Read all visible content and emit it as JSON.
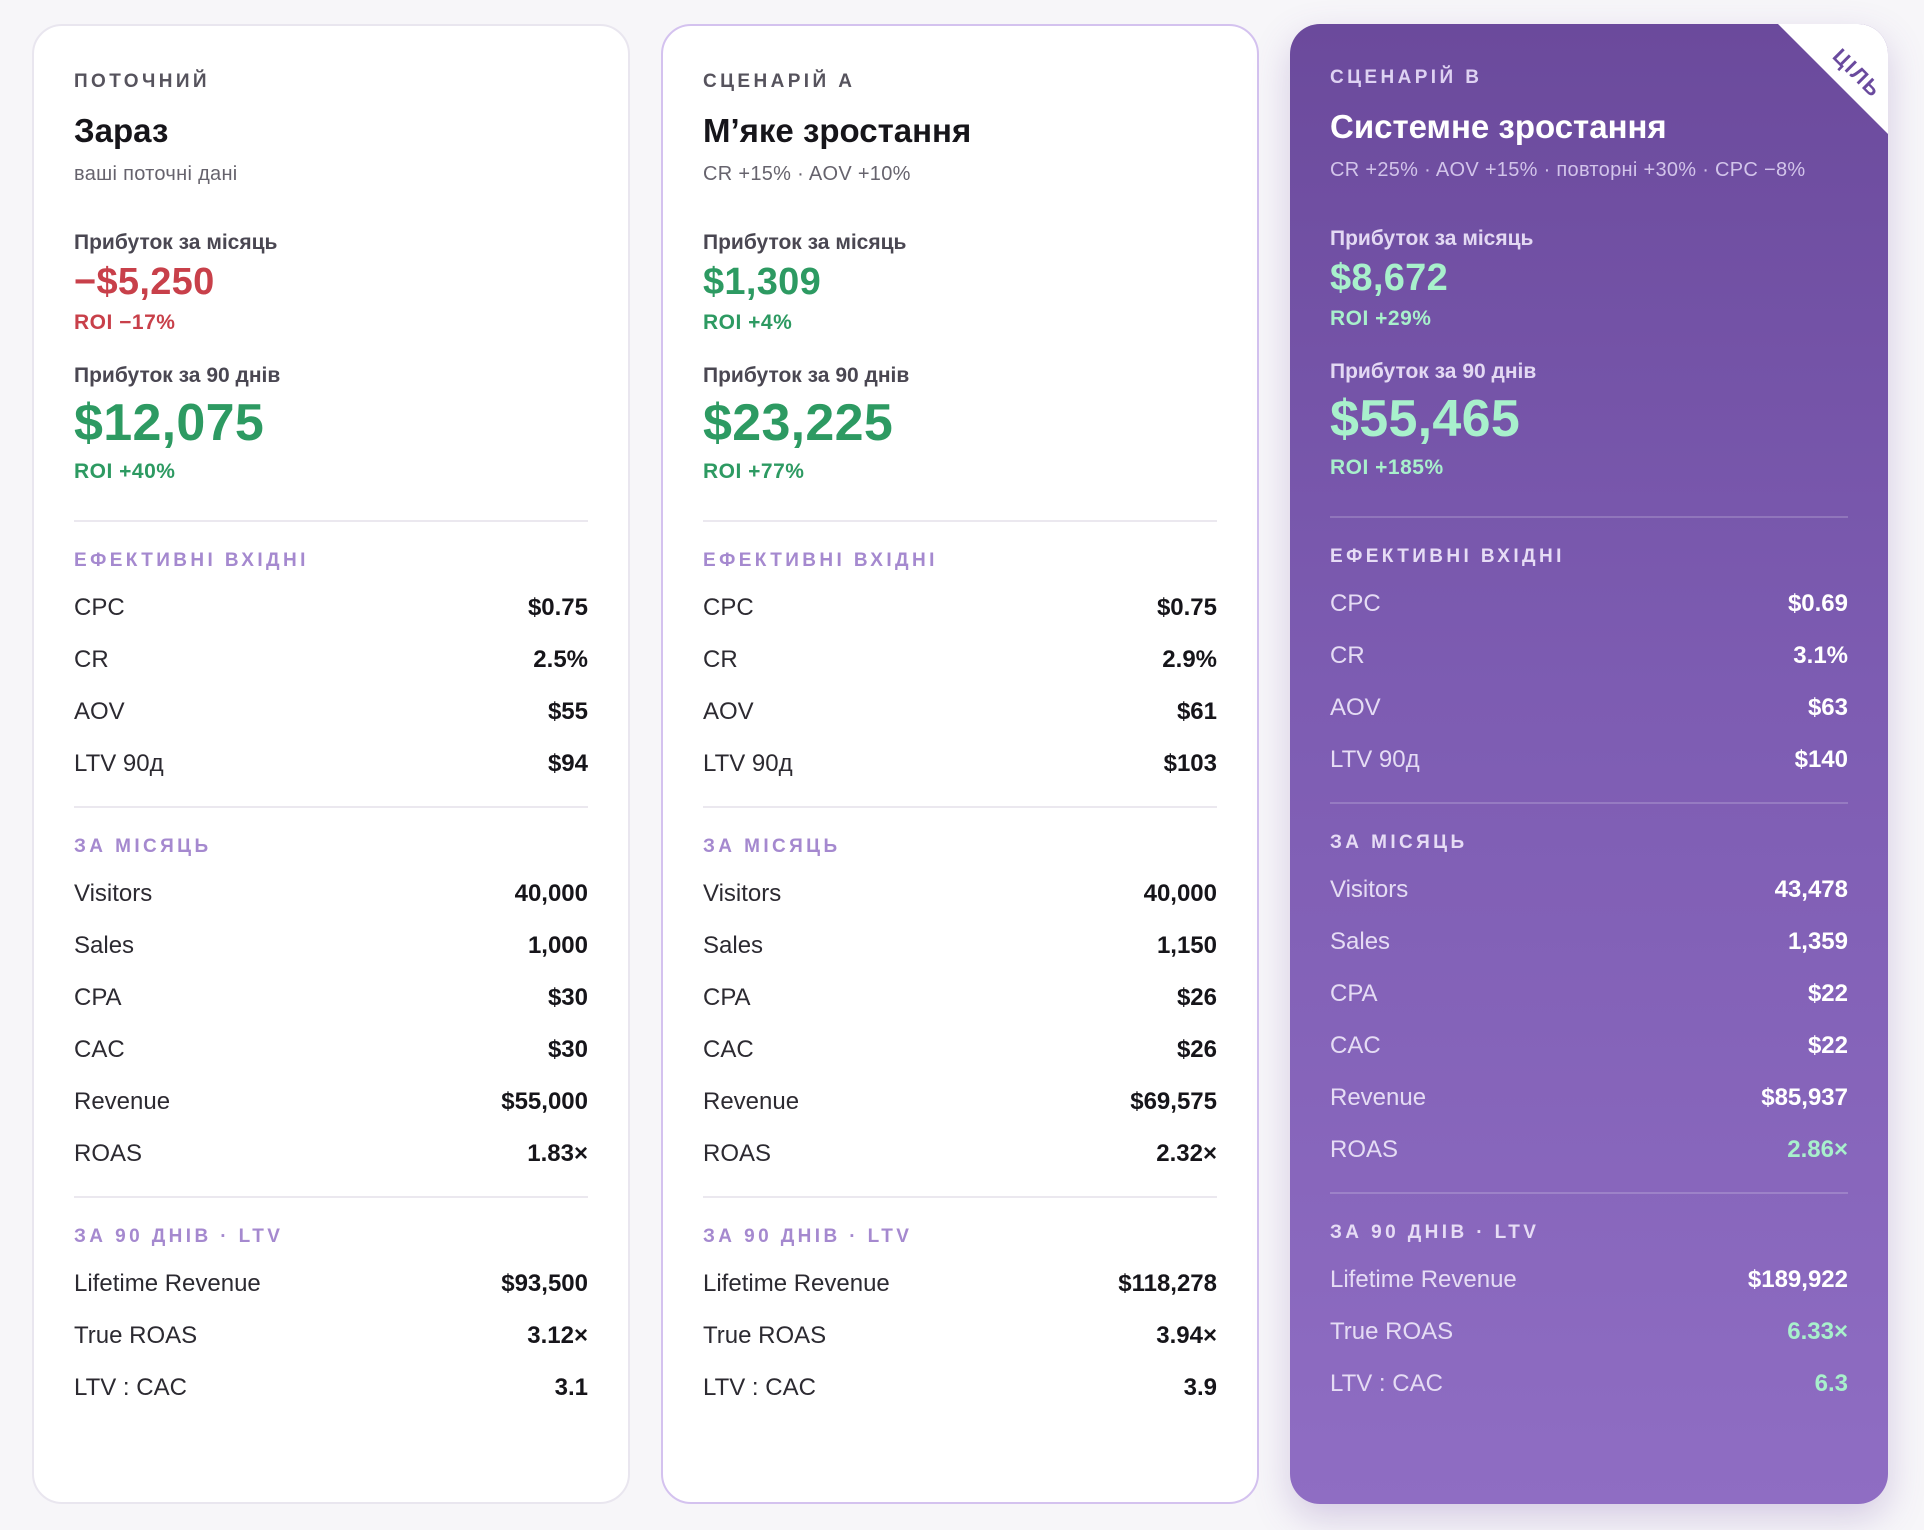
{
  "sections": {
    "inputs": "ЕФЕКТИВНІ ВХІДНІ",
    "monthly": "ЗА МІСЯЦЬ",
    "ltv": "ЗА 90 ДНІВ · LTV"
  },
  "labels": {
    "profit_month": "Прибуток за місяць",
    "profit_90": "Прибуток за 90 днів",
    "cpc": "CPC",
    "cr": "CR",
    "aov": "AOV",
    "ltv90": "LTV 90д",
    "visitors": "Visitors",
    "sales": "Sales",
    "cpa": "CPA",
    "cac": "CAC",
    "revenue": "Revenue",
    "roas": "ROAS",
    "lifetime_revenue": "Lifetime Revenue",
    "true_roas": "True ROAS",
    "ltv_cac": "LTV : CAC"
  },
  "colors": {
    "negative": "#c8404a",
    "positive": "#2d9a62",
    "warning": "#c08a10",
    "accent": "#7d5cb2"
  },
  "cards": [
    {
      "eyebrow": "ПОТОЧНИЙ",
      "title": "Зараз",
      "subtitle": "ваші поточні дані",
      "profit_month": "−$5,250",
      "roi_month": "ROI −17%",
      "profit_90": "$12,075",
      "roi_90": "ROI +40%",
      "cpc": "$0.75",
      "cr": "2.5%",
      "aov": "$55",
      "ltv90": "$94",
      "visitors": "40,000",
      "sales": "1,000",
      "cpa": "$30",
      "cac": "$30",
      "revenue": "$55,000",
      "roas": "1.83×",
      "lifetime_revenue": "$93,500",
      "true_roas": "3.12×",
      "ltv_cac": "3.1"
    },
    {
      "eyebrow": "СЦЕНАРІЙ A",
      "title": "М’яке зростання",
      "subtitle": "CR +15% · AOV +10%",
      "profit_month": "$1,309",
      "roi_month": "ROI +4%",
      "profit_90": "$23,225",
      "roi_90": "ROI +77%",
      "cpc": "$0.75",
      "cr": "2.9%",
      "aov": "$61",
      "ltv90": "$103",
      "visitors": "40,000",
      "sales": "1,150",
      "cpa": "$26",
      "cac": "$26",
      "revenue": "$69,575",
      "roas": "2.32×",
      "lifetime_revenue": "$118,278",
      "true_roas": "3.94×",
      "ltv_cac": "3.9"
    },
    {
      "eyebrow": "СЦЕНАРІЙ B",
      "badge": "ЦІЛЬ",
      "title": "Системне зростання",
      "subtitle": "CR +25% · AOV +15% · повторні +30% · CPC −8%",
      "profit_month": "$8,672",
      "roi_month": "ROI +29%",
      "profit_90": "$55,465",
      "roi_90": "ROI +185%",
      "cpc": "$0.69",
      "cr": "3.1%",
      "aov": "$63",
      "ltv90": "$140",
      "visitors": "43,478",
      "sales": "1,359",
      "cpa": "$22",
      "cac": "$22",
      "revenue": "$85,937",
      "roas": "2.86×",
      "lifetime_revenue": "$189,922",
      "true_roas": "6.33×",
      "ltv_cac": "6.3"
    }
  ]
}
